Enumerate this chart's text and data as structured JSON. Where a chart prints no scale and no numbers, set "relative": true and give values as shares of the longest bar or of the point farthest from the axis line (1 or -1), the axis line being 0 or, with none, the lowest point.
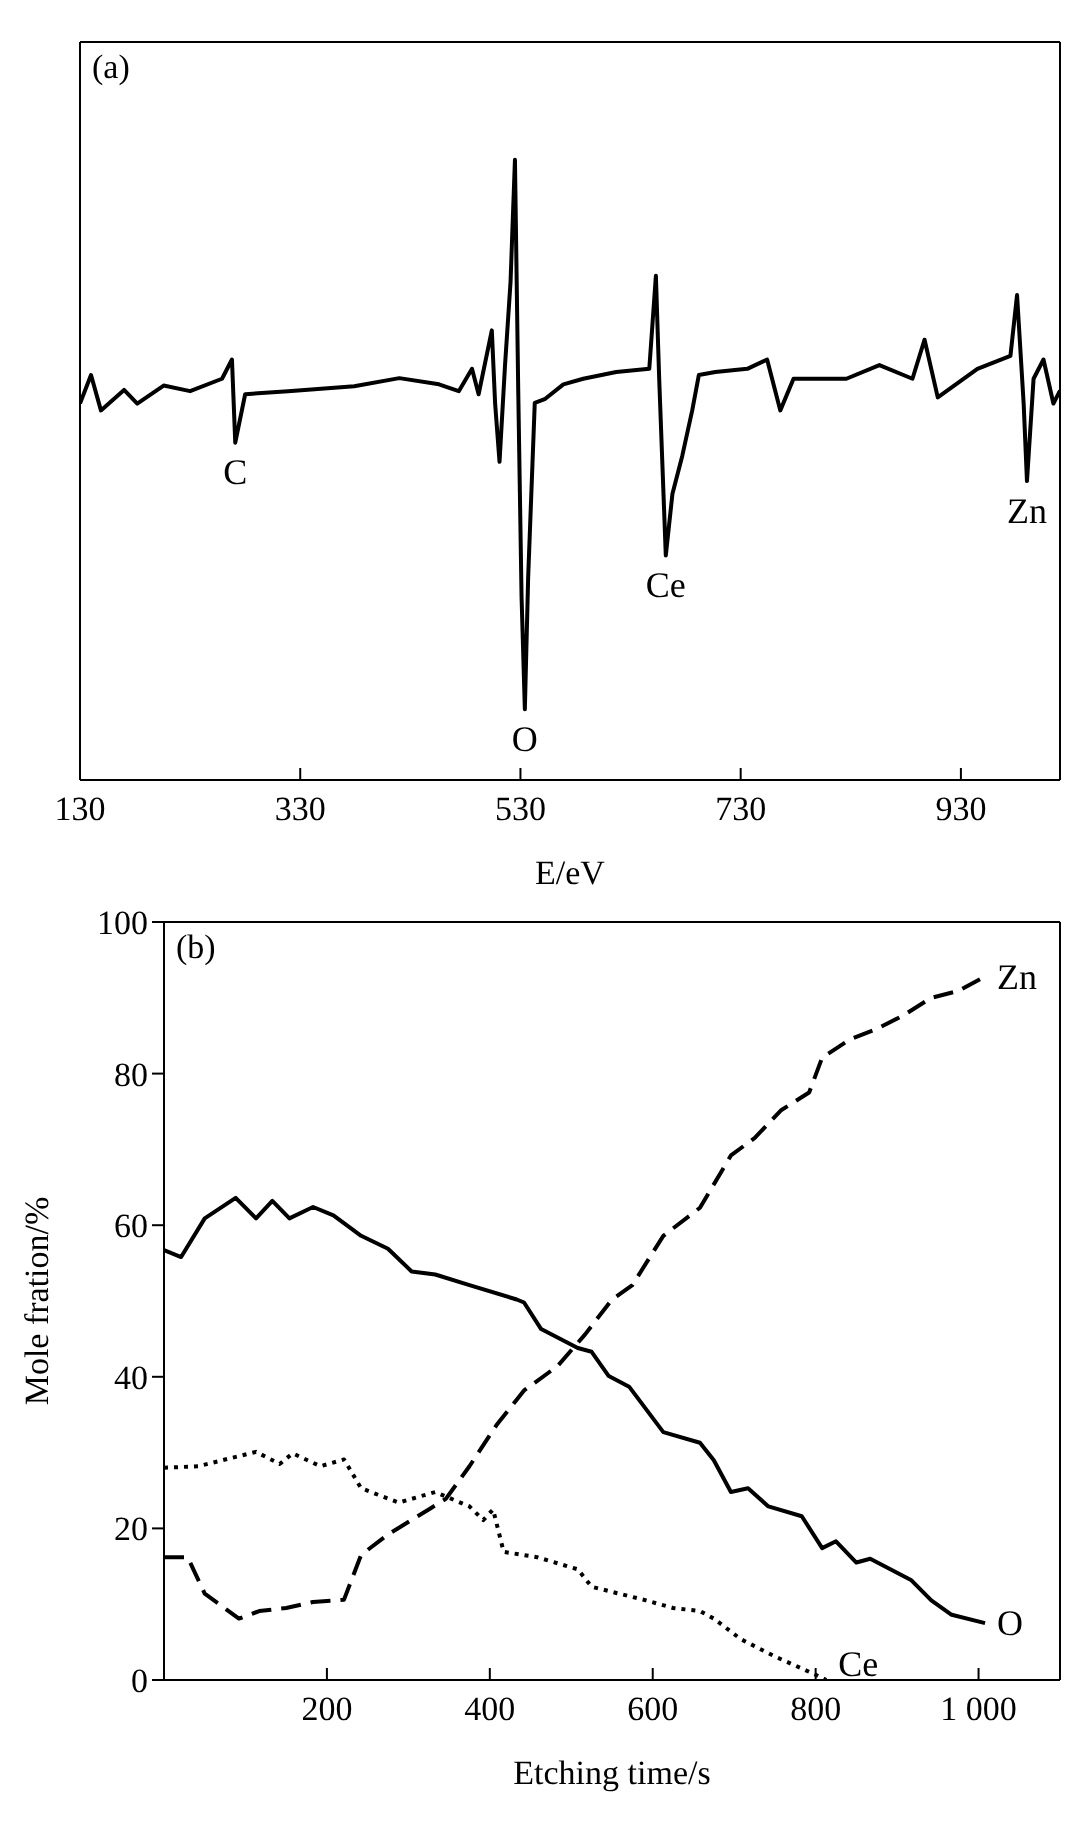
{
  "chart_data": [
    {
      "type": "line",
      "title": "(a)",
      "xlabel": "E/eV",
      "relative": true,
      "xlim": [
        130,
        1020
      ],
      "xticks": [
        130,
        330,
        530,
        730,
        930
      ],
      "marker": "none",
      "tick_labels": "x",
      "series": [
        {
          "color": "#000000",
          "line_style": "solid",
          "x": [
            130,
            140,
            149,
            170,
            182,
            206,
            230,
            259,
            268,
            271,
            280,
            319,
            379,
            420,
            456,
            474,
            486,
            492,
            504,
            507,
            511,
            516,
            521,
            525,
            528,
            531,
            534,
            537,
            543,
            552,
            569,
            587,
            617,
            647,
            653,
            656,
            662,
            668,
            677,
            686,
            692,
            707,
            736,
            754,
            766,
            778,
            826,
            856,
            886,
            897,
            909,
            945,
            975,
            981,
            987,
            990,
            996,
            1005,
            1014,
            1020
          ],
          "values": [
            0.607,
            0.653,
            0.596,
            0.629,
            0.607,
            0.636,
            0.627,
            0.647,
            0.678,
            0.544,
            0.622,
            0.627,
            0.635,
            0.648,
            0.638,
            0.627,
            0.663,
            0.622,
            0.725,
            0.607,
            0.513,
            0.669,
            0.803,
            1,
            0.627,
            0.296,
            0.114,
            0.327,
            0.608,
            0.614,
            0.638,
            0.647,
            0.658,
            0.663,
            0.813,
            0.647,
            0.362,
            0.461,
            0.523,
            0.596,
            0.653,
            0.658,
            0.663,
            0.678,
            0.596,
            0.647,
            0.647,
            0.669,
            0.647,
            0.71,
            0.617,
            0.663,
            0.684,
            0.782,
            0.607,
            0.482,
            0.647,
            0.678,
            0.607,
            0.628
          ]
        }
      ],
      "annotations": [
        {
          "text": "C",
          "x": 271,
          "y": 0.544
        },
        {
          "text": "O",
          "x": 534,
          "y": 0.114
        },
        {
          "text": "Ce",
          "x": 662,
          "y": 0.362
        },
        {
          "text": "Zn",
          "x": 990,
          "y": 0.482
        }
      ]
    },
    {
      "type": "line",
      "title": "(b)",
      "xlabel": "Etching time/s",
      "ylabel": "Mole fration/%",
      "xlim": [
        0,
        1100
      ],
      "ylim": [
        0,
        100
      ],
      "xticks": [
        {
          "value": 0,
          "label": null
        },
        200,
        400,
        600,
        800,
        {
          "value": 1000,
          "label": "1 000"
        }
      ],
      "yticks": [
        0,
        20,
        40,
        60,
        80,
        100
      ],
      "marker": "none",
      "series": [
        {
          "name": "O",
          "color": "#000000",
          "line_style": "solid",
          "x": [
            0,
            21,
            50,
            88,
            113,
            133,
            154,
            183,
            208,
            242,
            275,
            304,
            333,
            375,
            433,
            442,
            463,
            508,
            525,
            546,
            571,
            613,
            658,
            675,
            696,
            717,
            742,
            783,
            808,
            825,
            850,
            867,
            917,
            942,
            967,
            1008
          ],
          "values": [
            56.7,
            55.8,
            60.9,
            63.6,
            60.9,
            63.2,
            60.9,
            62.4,
            61.3,
            58.6,
            56.9,
            53.9,
            53.5,
            52.1,
            50.2,
            49.8,
            46.3,
            43.8,
            43.3,
            40.1,
            38.7,
            32.7,
            31.3,
            29.0,
            24.8,
            25.3,
            22.9,
            21.6,
            17.4,
            18.3,
            15.5,
            16.0,
            13.2,
            10.5,
            8.6,
            7.5
          ]
        },
        {
          "name": "Zn",
          "color": "#000000",
          "line_style": "dashed",
          "x": [
            0,
            29,
            50,
            92,
            117,
            150,
            183,
            221,
            242,
            275,
            325,
            346,
            375,
            408,
            442,
            483,
            517,
            550,
            575,
            613,
            658,
            696,
            725,
            758,
            792,
            808,
            842,
            875,
            908,
            942,
            975,
            1008
          ],
          "values": [
            16.2,
            16.2,
            11.4,
            8.1,
            9.1,
            9.5,
            10.3,
            10.6,
            16.5,
            19.2,
            22.5,
            23.9,
            28.2,
            33.6,
            38.2,
            41.4,
            45.6,
            50.2,
            52.1,
            58.6,
            62.3,
            69.2,
            71.5,
            75.2,
            77.5,
            82.1,
            84.5,
            85.9,
            87.7,
            90.0,
            90.9,
            92.8
          ]
        },
        {
          "name": "Ce",
          "color": "#000000",
          "line_style": "dotted",
          "x": [
            0,
            42,
            113,
            142,
            158,
            192,
            221,
            242,
            288,
            333,
            375,
            392,
            404,
            417,
            458,
            508,
            525,
            592,
            625,
            658,
            675,
            708,
            750,
            800,
            813
          ],
          "values": [
            28.0,
            28.2,
            30.1,
            28.5,
            29.9,
            28.2,
            29.1,
            25.3,
            23.4,
            24.8,
            22.9,
            21.1,
            22.5,
            16.9,
            16.2,
            14.6,
            12.3,
            10.5,
            9.5,
            9.1,
            8.1,
            5.4,
            3.1,
            0.7,
            0
          ]
        }
      ]
    }
  ]
}
